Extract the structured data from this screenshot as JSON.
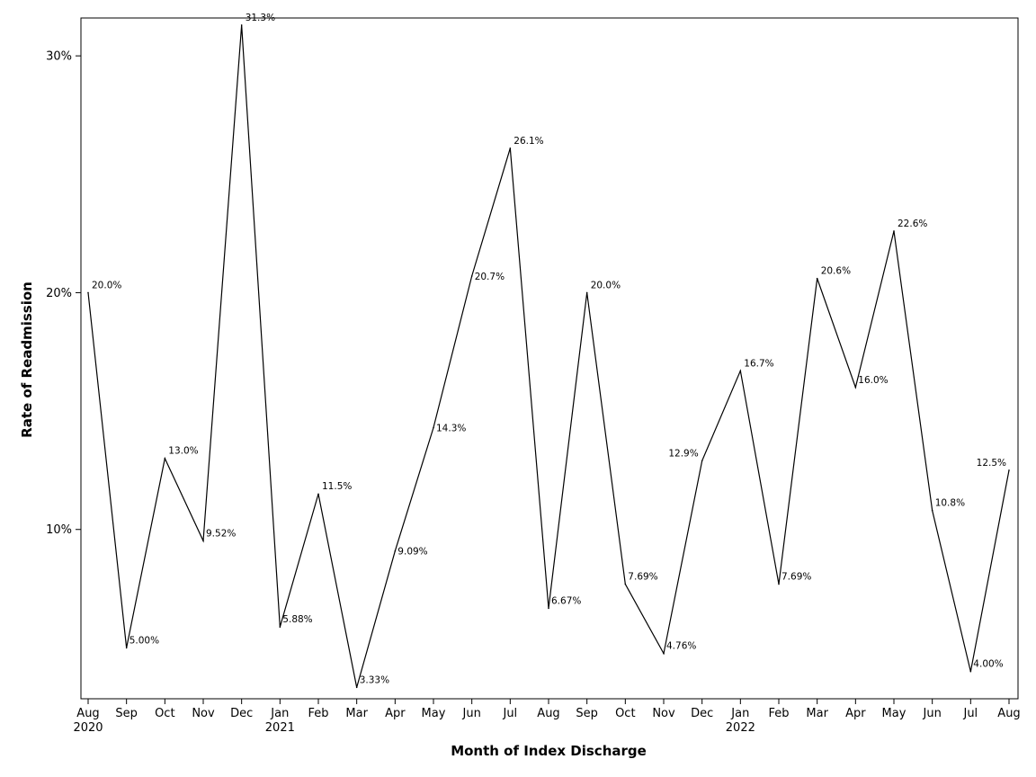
{
  "chart_data": {
    "type": "line",
    "title": "",
    "xlabel": "Month of Index Discharge",
    "ylabel": "Rate of Readmission",
    "x": [
      "Aug 2020",
      "Sep 2020",
      "Oct 2020",
      "Nov 2020",
      "Dec 2020",
      "Jan 2021",
      "Feb 2021",
      "Mar 2021",
      "Apr 2021",
      "May 2021",
      "Jun 2021",
      "Jul 2021",
      "Aug 2021",
      "Sep 2021",
      "Oct 2021",
      "Nov 2021",
      "Dec 2021",
      "Jan 2022",
      "Feb 2022",
      "Mar 2022",
      "Apr 2022",
      "May 2022",
      "Jun 2022",
      "Jul 2022",
      "Aug 2022"
    ],
    "x_tick_labels": [
      {
        "month": "Aug",
        "year": "2020"
      },
      {
        "month": "Sep",
        "year": ""
      },
      {
        "month": "Oct",
        "year": ""
      },
      {
        "month": "Nov",
        "year": ""
      },
      {
        "month": "Dec",
        "year": ""
      },
      {
        "month": "Jan",
        "year": "2021"
      },
      {
        "month": "Feb",
        "year": ""
      },
      {
        "month": "Mar",
        "year": ""
      },
      {
        "month": "Apr",
        "year": ""
      },
      {
        "month": "May",
        "year": ""
      },
      {
        "month": "Jun",
        "year": ""
      },
      {
        "month": "Jul",
        "year": ""
      },
      {
        "month": "Aug",
        "year": ""
      },
      {
        "month": "Sep",
        "year": ""
      },
      {
        "month": "Oct",
        "year": ""
      },
      {
        "month": "Nov",
        "year": ""
      },
      {
        "month": "Dec",
        "year": ""
      },
      {
        "month": "Jan",
        "year": "2022"
      },
      {
        "month": "Feb",
        "year": ""
      },
      {
        "month": "Mar",
        "year": ""
      },
      {
        "month": "Apr",
        "year": ""
      },
      {
        "month": "May",
        "year": ""
      },
      {
        "month": "Jun",
        "year": ""
      },
      {
        "month": "Jul",
        "year": ""
      },
      {
        "month": "Aug",
        "year": ""
      }
    ],
    "series": [
      {
        "values": [
          20.0,
          5.0,
          13.0,
          9.52,
          31.3,
          5.88,
          11.5,
          3.33,
          9.09,
          14.3,
          20.7,
          26.1,
          6.67,
          20.0,
          7.69,
          4.76,
          12.9,
          16.7,
          7.69,
          20.6,
          16.0,
          22.6,
          10.8,
          4.0,
          12.5
        ],
        "labels": [
          "20.0%",
          "5.00%",
          "13.0%",
          "9.52%",
          "31.3%",
          "5.88%",
          "11.5%",
          "3.33%",
          "9.09%",
          "14.3%",
          "20.7%",
          "26.1%",
          "6.67%",
          "20.0%",
          "7.69%",
          "4.76%",
          "12.9%",
          "16.7%",
          "7.69%",
          "20.6%",
          "16.0%",
          "22.6%",
          "10.8%",
          "4.00%",
          "12.5%"
        ]
      }
    ],
    "y_ticks": [
      10,
      20,
      30
    ],
    "y_tick_labels": [
      "10%",
      "20%",
      "30%"
    ],
    "ylim": [
      2.85,
      31.6
    ],
    "grid": false,
    "legend": "none",
    "line_color": "#000000"
  }
}
